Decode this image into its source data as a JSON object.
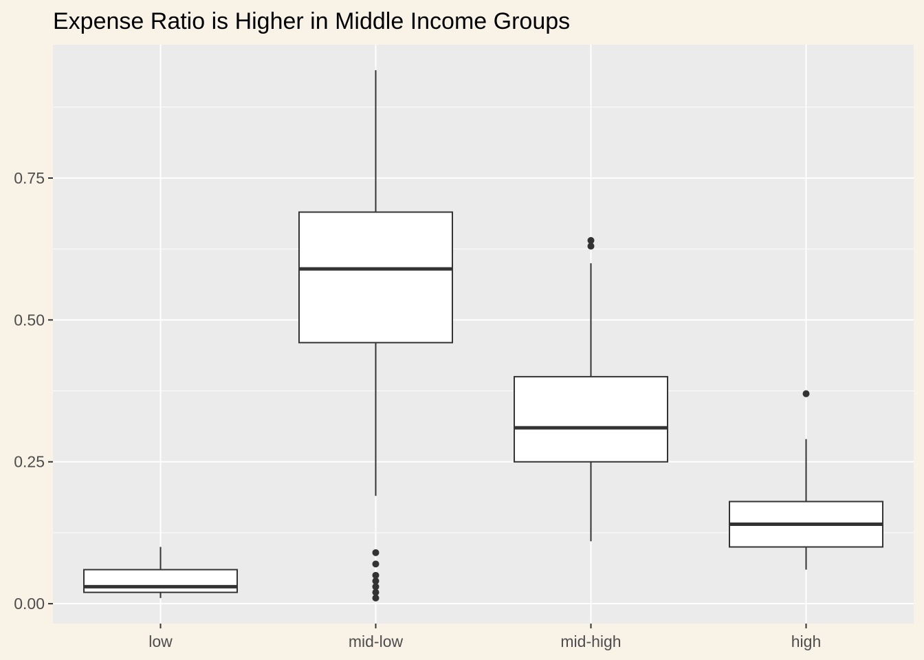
{
  "chart_data": {
    "type": "boxplot",
    "title": "Expense Ratio is Higher in Middle Income Groups",
    "xlabel": "",
    "ylabel": "",
    "categories": [
      "low",
      "mid-low",
      "mid-high",
      "high"
    ],
    "ylim": [
      -0.035,
      0.985
    ],
    "y_ticks": [
      0.0,
      0.25,
      0.5,
      0.75
    ],
    "y_tick_labels": [
      "0.00",
      "0.25",
      "0.50",
      "0.75"
    ],
    "grid": true,
    "legend": "none",
    "boxes": [
      {
        "category": "low",
        "whisker_low": 0.01,
        "q1": 0.02,
        "median": 0.03,
        "q3": 0.06,
        "whisker_high": 0.1,
        "outliers": []
      },
      {
        "category": "mid-low",
        "whisker_low": 0.19,
        "q1": 0.46,
        "median": 0.59,
        "q3": 0.69,
        "whisker_high": 0.94,
        "outliers": [
          0.01,
          0.02,
          0.03,
          0.04,
          0.05,
          0.07,
          0.09
        ]
      },
      {
        "category": "mid-high",
        "whisker_low": 0.11,
        "q1": 0.25,
        "median": 0.31,
        "q3": 0.4,
        "whisker_high": 0.6,
        "outliers": [
          0.63,
          0.64
        ]
      },
      {
        "category": "high",
        "whisker_low": 0.06,
        "q1": 0.1,
        "median": 0.14,
        "q3": 0.18,
        "whisker_high": 0.29,
        "outliers": [
          0.37
        ]
      }
    ],
    "colors": {
      "page_background": "#f9f2e6",
      "panel_background": "#ebebeb",
      "grid": "#ffffff",
      "box_fill": "#ffffff",
      "box_stroke": "#333333",
      "tick_label": "#4d4d4d",
      "title": "#000000"
    }
  }
}
